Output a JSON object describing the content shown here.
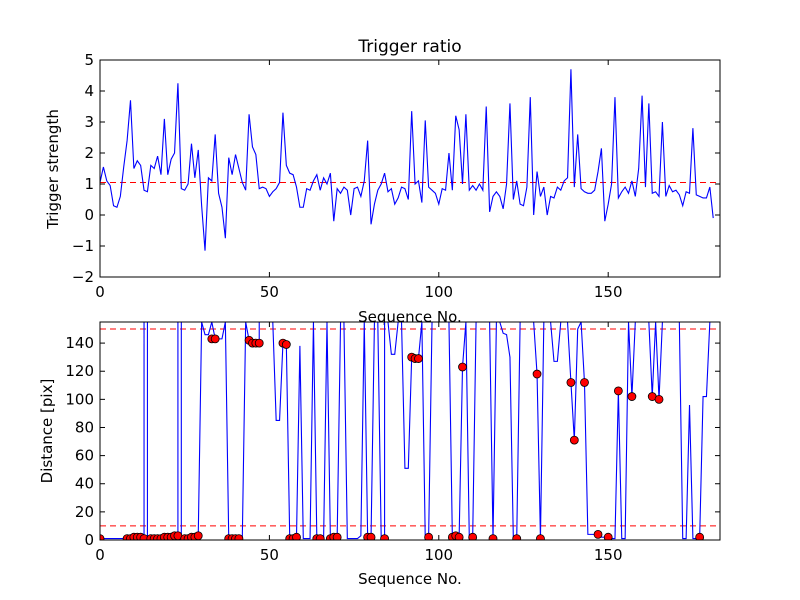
{
  "chart_data": [
    {
      "type": "line",
      "title": "Trigger ratio",
      "xlabel": "Sequence No.",
      "ylabel": "Trigger strength",
      "xlim": [
        0,
        183
      ],
      "ylim": [
        -2,
        5
      ],
      "xticks": [
        "0",
        "50",
        "100",
        "150"
      ],
      "xtick_values": [
        0,
        50,
        100,
        150
      ],
      "yticks": [
        "−2",
        "−1",
        "0",
        "1",
        "2",
        "3",
        "4",
        "5"
      ],
      "ytick_values": [
        -2,
        -1,
        0,
        1,
        2,
        3,
        4,
        5
      ],
      "grid": false,
      "line_color": "#0000ff",
      "threshold": {
        "value": 1.05,
        "color": "#ff0000",
        "style": "dashed"
      },
      "x_start": 0,
      "x_step": 1,
      "y": [
        1.05,
        1.55,
        1.1,
        0.95,
        0.3,
        0.25,
        0.6,
        1.55,
        2.4,
        3.7,
        1.5,
        1.75,
        1.6,
        0.8,
        0.75,
        1.6,
        1.5,
        1.9,
        1.3,
        3.1,
        1.3,
        1.8,
        2.0,
        4.25,
        0.85,
        0.8,
        1.0,
        2.3,
        1.2,
        2.1,
        0.3,
        -1.15,
        1.2,
        1.1,
        2.6,
        0.7,
        0.25,
        -0.75,
        1.85,
        1.3,
        1.95,
        1.5,
        1.05,
        0.8,
        3.25,
        2.2,
        1.95,
        0.85,
        0.9,
        0.85,
        0.6,
        0.75,
        0.85,
        1.05,
        3.3,
        1.6,
        1.35,
        1.3,
        0.9,
        0.25,
        0.25,
        0.85,
        0.8,
        1.1,
        1.3,
        0.8,
        1.2,
        1.0,
        1.35,
        -0.2,
        0.85,
        0.7,
        0.9,
        0.8,
        0.0,
        0.85,
        0.9,
        0.6,
        1.1,
        2.4,
        -0.3,
        0.35,
        0.8,
        1.0,
        1.35,
        0.75,
        0.85,
        0.35,
        0.55,
        0.9,
        0.85,
        0.5,
        3.35,
        1.0,
        1.1,
        0.4,
        3.05,
        0.9,
        0.8,
        0.7,
        0.35,
        0.85,
        0.8,
        2.0,
        0.8,
        3.2,
        2.75,
        1.0,
        3.25,
        0.8,
        0.95,
        0.8,
        1.0,
        0.8,
        3.5,
        0.1,
        0.6,
        0.75,
        0.6,
        0.2,
        1.0,
        3.6,
        0.5,
        1.1,
        0.35,
        0.3,
        0.9,
        3.8,
        0.0,
        1.4,
        0.6,
        0.9,
        0.0,
        0.6,
        0.55,
        0.9,
        0.8,
        1.1,
        1.2,
        4.7,
        0.9,
        2.6,
        0.85,
        0.75,
        0.7,
        0.7,
        0.8,
        1.4,
        2.15,
        -0.2,
        0.35,
        1.0,
        3.8,
        0.55,
        0.75,
        0.9,
        0.7,
        1.1,
        0.6,
        1.5,
        3.85,
        0.9,
        3.6,
        0.7,
        0.75,
        0.6,
        3.0,
        0.6,
        0.95,
        0.75,
        0.8,
        0.65,
        0.3,
        0.75,
        0.7,
        2.8,
        0.65,
        0.6,
        0.55,
        0.55,
        0.9,
        -0.1
      ]
    },
    {
      "type": "line",
      "title": "",
      "xlabel": "Sequence No.",
      "ylabel": "Distance [pix]",
      "xlim": [
        0,
        183
      ],
      "ylim": [
        0,
        155
      ],
      "xticks": [
        "0",
        "50",
        "100",
        "150"
      ],
      "xtick_values": [
        0,
        50,
        100,
        150
      ],
      "yticks": [
        "0",
        "20",
        "40",
        "60",
        "80",
        "100",
        "120",
        "140"
      ],
      "ytick_values": [
        0,
        20,
        40,
        60,
        80,
        100,
        120,
        140
      ],
      "grid": false,
      "line_color": "#0000ff",
      "marker_color": "#ff0000",
      "thresholds": [
        {
          "value": 150,
          "color": "#ff0000",
          "style": "dashed"
        },
        {
          "value": 10,
          "color": "#ff0000",
          "style": "dashed"
        }
      ],
      "line_points": [
        [
          0,
          1
        ],
        [
          8,
          1
        ],
        [
          9,
          1
        ],
        [
          10,
          2
        ],
        [
          11,
          2
        ],
        [
          12,
          2
        ],
        [
          13,
          1
        ],
        [
          13,
          155
        ],
        [
          14,
          155
        ],
        [
          14,
          1
        ],
        [
          15,
          1
        ],
        [
          16,
          1
        ],
        [
          17,
          1
        ],
        [
          18,
          1
        ],
        [
          19,
          2
        ],
        [
          20,
          2
        ],
        [
          21,
          2
        ],
        [
          22,
          3
        ],
        [
          23,
          3
        ],
        [
          23,
          155
        ],
        [
          24,
          155
        ],
        [
          24,
          1
        ],
        [
          25,
          1
        ],
        [
          26,
          1
        ],
        [
          27,
          2
        ],
        [
          28,
          2
        ],
        [
          29,
          3
        ],
        [
          30,
          155
        ],
        [
          31,
          146
        ],
        [
          32,
          146
        ],
        [
          33,
          155
        ],
        [
          34,
          143
        ],
        [
          35,
          143
        ],
        [
          36,
          143
        ],
        [
          37,
          155
        ],
        [
          38,
          1
        ],
        [
          39,
          1
        ],
        [
          40,
          1
        ],
        [
          41,
          1
        ],
        [
          42,
          1
        ],
        [
          43,
          155
        ],
        [
          44,
          142
        ],
        [
          45,
          141
        ],
        [
          46,
          140
        ],
        [
          47,
          140
        ],
        [
          47,
          155
        ],
        [
          48,
          155
        ],
        [
          49,
          155
        ],
        [
          50,
          155
        ],
        [
          51,
          155
        ],
        [
          52,
          85
        ],
        [
          53,
          85
        ],
        [
          54,
          140
        ],
        [
          55,
          139
        ],
        [
          56,
          1
        ],
        [
          57,
          1
        ],
        [
          58,
          2
        ],
        [
          59,
          138
        ],
        [
          60,
          1
        ],
        [
          61,
          1
        ],
        [
          62,
          1
        ],
        [
          63,
          155
        ],
        [
          64,
          1
        ],
        [
          65,
          1
        ],
        [
          66,
          1
        ],
        [
          67,
          155
        ],
        [
          68,
          1
        ],
        [
          69,
          2
        ],
        [
          70,
          2
        ],
        [
          71,
          155
        ],
        [
          72,
          155
        ],
        [
          73,
          1
        ],
        [
          74,
          1
        ],
        [
          75,
          1
        ],
        [
          76,
          1
        ],
        [
          77,
          3
        ],
        [
          78,
          155
        ],
        [
          79,
          2
        ],
        [
          80,
          2
        ],
        [
          81,
          155
        ],
        [
          82,
          155
        ],
        [
          83,
          1
        ],
        [
          84,
          1
        ],
        [
          84,
          155
        ],
        [
          85,
          155
        ],
        [
          86,
          132
        ],
        [
          87,
          132
        ],
        [
          88,
          155
        ],
        [
          89,
          155
        ],
        [
          90,
          51
        ],
        [
          91,
          51
        ],
        [
          92,
          130
        ],
        [
          93,
          129
        ],
        [
          94,
          129
        ],
        [
          95,
          155
        ],
        [
          96,
          1
        ],
        [
          97,
          2
        ],
        [
          98,
          155
        ],
        [
          99,
          155
        ],
        [
          100,
          155
        ],
        [
          101,
          155
        ],
        [
          102,
          155
        ],
        [
          103,
          155
        ],
        [
          104,
          2
        ],
        [
          105,
          3
        ],
        [
          106,
          2
        ],
        [
          107,
          123
        ],
        [
          108,
          155
        ],
        [
          109,
          1
        ],
        [
          110,
          2
        ],
        [
          111,
          155
        ],
        [
          112,
          155
        ],
        [
          113,
          155
        ],
        [
          114,
          155
        ],
        [
          115,
          155
        ],
        [
          116,
          1
        ],
        [
          117,
          155
        ],
        [
          118,
          155
        ],
        [
          119,
          147
        ],
        [
          120,
          146
        ],
        [
          121,
          130
        ],
        [
          122,
          1
        ],
        [
          123,
          1
        ],
        [
          124,
          155
        ],
        [
          125,
          155
        ],
        [
          126,
          155
        ],
        [
          127,
          155
        ],
        [
          128,
          155
        ],
        [
          129,
          118
        ],
        [
          130,
          1
        ],
        [
          131,
          155
        ],
        [
          132,
          155
        ],
        [
          133,
          155
        ],
        [
          134,
          127
        ],
        [
          135,
          127
        ],
        [
          136,
          155
        ],
        [
          137,
          155
        ],
        [
          138,
          155
        ],
        [
          139,
          112
        ],
        [
          140,
          71
        ],
        [
          141,
          150
        ],
        [
          142,
          155
        ],
        [
          143,
          112
        ],
        [
          144,
          4
        ],
        [
          145,
          4
        ],
        [
          146,
          4
        ],
        [
          147,
          4
        ],
        [
          148,
          2
        ],
        [
          149,
          2
        ],
        [
          150,
          2
        ],
        [
          151,
          1
        ],
        [
          152,
          1
        ],
        [
          153,
          106
        ],
        [
          154,
          1
        ],
        [
          155,
          1
        ],
        [
          156,
          155
        ],
        [
          157,
          102
        ],
        [
          158,
          155
        ],
        [
          159,
          155
        ],
        [
          160,
          155
        ],
        [
          161,
          155
        ],
        [
          162,
          155
        ],
        [
          163,
          102
        ],
        [
          164,
          155
        ],
        [
          165,
          100
        ],
        [
          166,
          155
        ],
        [
          167,
          155
        ],
        [
          168,
          155
        ],
        [
          169,
          155
        ],
        [
          170,
          155
        ],
        [
          171,
          155
        ],
        [
          172,
          1
        ],
        [
          173,
          1
        ],
        [
          174,
          96
        ],
        [
          175,
          1
        ],
        [
          176,
          1
        ],
        [
          177,
          2
        ],
        [
          178,
          102
        ],
        [
          179,
          102
        ],
        [
          180,
          155
        ],
        [
          181,
          155
        ],
        [
          182,
          155
        ],
        [
          183,
          155
        ]
      ],
      "markers": [
        [
          0,
          1
        ],
        [
          8,
          1
        ],
        [
          9,
          1
        ],
        [
          10,
          2
        ],
        [
          11,
          2
        ],
        [
          12,
          2
        ],
        [
          13,
          1
        ],
        [
          15,
          1
        ],
        [
          16,
          1
        ],
        [
          17,
          1
        ],
        [
          18,
          1
        ],
        [
          19,
          2
        ],
        [
          20,
          2
        ],
        [
          21,
          2
        ],
        [
          22,
          3
        ],
        [
          23,
          3
        ],
        [
          25,
          1
        ],
        [
          26,
          1
        ],
        [
          27,
          2
        ],
        [
          28,
          2
        ],
        [
          29,
          3
        ],
        [
          33,
          143
        ],
        [
          34,
          143
        ],
        [
          38,
          1
        ],
        [
          39,
          1
        ],
        [
          40,
          1
        ],
        [
          41,
          1
        ],
        [
          44,
          142
        ],
        [
          45,
          140
        ],
        [
          46,
          140
        ],
        [
          47,
          140
        ],
        [
          54,
          140
        ],
        [
          55,
          139
        ],
        [
          56,
          1
        ],
        [
          57,
          1
        ],
        [
          58,
          2
        ],
        [
          64,
          1
        ],
        [
          65,
          1
        ],
        [
          68,
          1
        ],
        [
          69,
          2
        ],
        [
          70,
          2
        ],
        [
          79,
          2
        ],
        [
          80,
          2
        ],
        [
          84,
          1
        ],
        [
          92,
          130
        ],
        [
          93,
          129
        ],
        [
          94,
          129
        ],
        [
          97,
          2
        ],
        [
          104,
          2
        ],
        [
          105,
          3
        ],
        [
          106,
          2
        ],
        [
          107,
          123
        ],
        [
          110,
          2
        ],
        [
          116,
          1
        ],
        [
          123,
          1
        ],
        [
          129,
          118
        ],
        [
          130,
          1
        ],
        [
          139,
          112
        ],
        [
          140,
          71
        ],
        [
          143,
          112
        ],
        [
          147,
          4
        ],
        [
          150,
          2
        ],
        [
          153,
          106
        ],
        [
          157,
          102
        ],
        [
          163,
          102
        ],
        [
          165,
          100
        ],
        [
          177,
          2
        ]
      ]
    }
  ]
}
